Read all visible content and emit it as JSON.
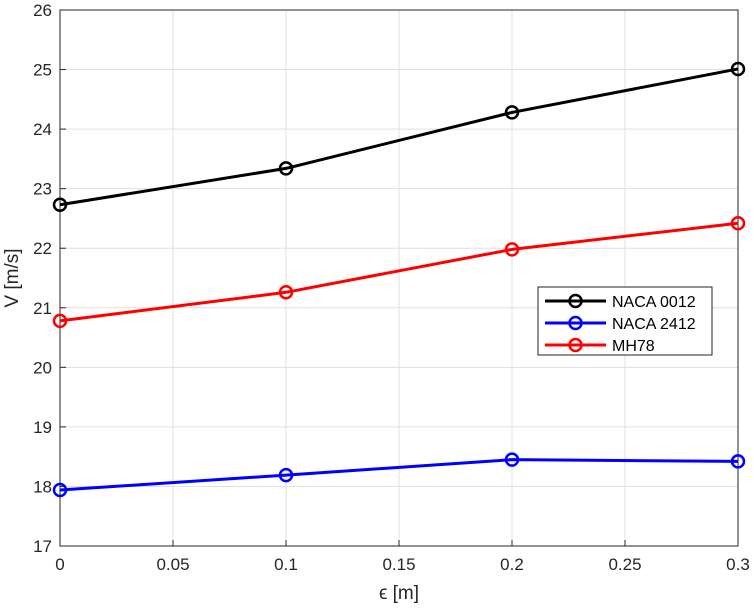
{
  "chart_data": {
    "type": "line",
    "title": "",
    "xlabel": "ϵ [m]",
    "ylabel": "V [m/s]",
    "x": [
      0,
      0.1,
      0.2,
      0.3
    ],
    "xlim": [
      0,
      0.3
    ],
    "ylim": [
      17,
      26
    ],
    "xticks": [
      0,
      0.05,
      0.1,
      0.15,
      0.2,
      0.25,
      0.3
    ],
    "xtick_labels": [
      "0",
      "0.05",
      "0.1",
      "0.15",
      "0.2",
      "0.25",
      "0.3"
    ],
    "yticks": [
      17,
      18,
      19,
      20,
      21,
      22,
      23,
      24,
      25,
      26
    ],
    "ytick_labels": [
      "17",
      "18",
      "19",
      "20",
      "21",
      "22",
      "23",
      "24",
      "25",
      "26"
    ],
    "grid": true,
    "legend_position": "right",
    "marker": "circle",
    "series": [
      {
        "name": "NACA 0012",
        "color": "#000000",
        "values": [
          22.73,
          23.34,
          24.28,
          25.01
        ]
      },
      {
        "name": "NACA 2412",
        "color": "#0000ff",
        "values": [
          17.94,
          18.19,
          18.45,
          18.42
        ]
      },
      {
        "name": "MH78",
        "color": "#ff0000",
        "values": [
          20.78,
          21.26,
          21.98,
          22.42
        ]
      }
    ]
  }
}
